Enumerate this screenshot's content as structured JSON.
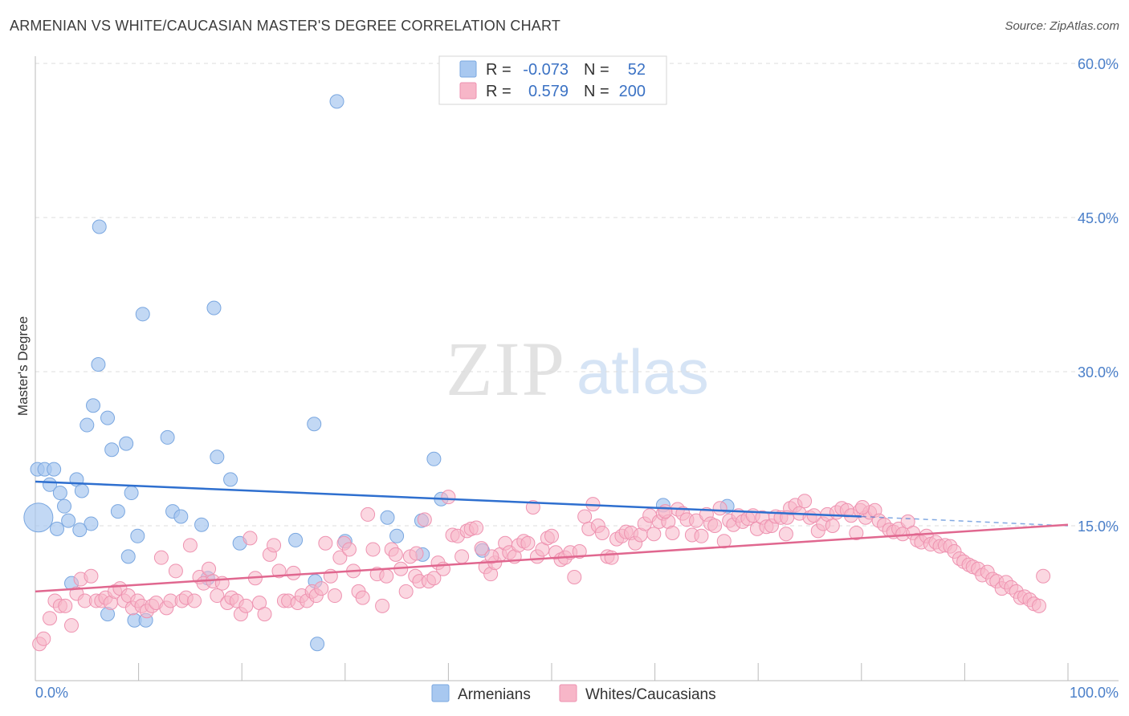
{
  "title": "ARMENIAN VS WHITE/CAUCASIAN MASTER'S DEGREE CORRELATION CHART",
  "source": "Source: ZipAtlas.com",
  "watermark": {
    "zip": "ZIP",
    "atlas": "atlas"
  },
  "legend_top": {
    "r_label": "R =",
    "n_label": "N =",
    "rows": [
      {
        "r": "-0.073",
        "n": "52",
        "color": "#a8c8f0"
      },
      {
        "r": "0.579",
        "n": "200",
        "color": "#f7b6c8"
      }
    ]
  },
  "bottom_legend": [
    "Armenians",
    "Whites/Caucasians"
  ],
  "colors": {
    "blue_fill": "#a8c8f0",
    "blue_line": "#2e6fcf",
    "pink_fill": "#f7b6c8",
    "pink_line": "#e0678f",
    "tick_text": "#4a7fc9"
  },
  "chart_data": {
    "type": "scatter",
    "ylabel": "Master's Degree",
    "xlim": [
      0,
      100
    ],
    "ylim": [
      0,
      60
    ],
    "x_tick_labels": [
      "0.0%",
      "100.0%"
    ],
    "y_ticks": [
      15,
      30,
      45,
      60
    ],
    "y_tick_labels": [
      "15.0%",
      "30.0%",
      "45.0%",
      "60.0%"
    ],
    "grid": "horizontal dashed",
    "legend": "top-center",
    "series": [
      {
        "name": "Armenians",
        "trend": {
          "x": [
            0,
            80,
            100
          ],
          "y": [
            19.3,
            15.9,
            15.0
          ],
          "dashed_after": 80
        },
        "points": [
          [
            0.2,
            20.5
          ],
          [
            0.9,
            20.5
          ],
          [
            1.8,
            20.5
          ],
          [
            1.4,
            19.0
          ],
          [
            2.4,
            18.2
          ],
          [
            2.8,
            16.9
          ],
          [
            3.2,
            15.5
          ],
          [
            2.1,
            14.7
          ],
          [
            4.0,
            19.5
          ],
          [
            4.5,
            18.4
          ],
          [
            5.4,
            15.2
          ],
          [
            4.3,
            14.6
          ],
          [
            3.5,
            9.4
          ],
          [
            5.0,
            24.8
          ],
          [
            5.6,
            26.7
          ],
          [
            6.1,
            30.7
          ],
          [
            6.2,
            44.1
          ],
          [
            7.0,
            25.5
          ],
          [
            7.4,
            22.4
          ],
          [
            8.0,
            16.4
          ],
          [
            8.8,
            23.0
          ],
          [
            9.3,
            18.2
          ],
          [
            9.0,
            12.0
          ],
          [
            9.9,
            14.0
          ],
          [
            10.4,
            35.6
          ],
          [
            12.8,
            23.6
          ],
          [
            13.3,
            16.4
          ],
          [
            14.1,
            15.9
          ],
          [
            16.1,
            15.1
          ],
          [
            16.7,
            9.9
          ],
          [
            17.3,
            36.2
          ],
          [
            17.6,
            21.7
          ],
          [
            18.9,
            19.5
          ],
          [
            19.8,
            13.3
          ],
          [
            7.0,
            6.4
          ],
          [
            9.6,
            5.8
          ],
          [
            10.7,
            5.8
          ],
          [
            25.2,
            13.6
          ],
          [
            27.0,
            24.9
          ],
          [
            27.1,
            9.6
          ],
          [
            27.3,
            3.5
          ],
          [
            29.2,
            56.3
          ],
          [
            30.0,
            13.5
          ],
          [
            34.1,
            15.8
          ],
          [
            35.0,
            14.0
          ],
          [
            37.4,
            15.5
          ],
          [
            37.5,
            12.2
          ],
          [
            38.6,
            21.5
          ],
          [
            39.3,
            17.6
          ],
          [
            43.3,
            12.6
          ],
          [
            60.8,
            17.0
          ],
          [
            67.0,
            16.9
          ],
          [
            0.3,
            15.8
          ]
        ]
      },
      {
        "name": "Whites/Caucasians",
        "trend": {
          "x": [
            0,
            100
          ],
          "y": [
            8.6,
            15.1
          ]
        },
        "points": [
          [
            0.4,
            3.5
          ],
          [
            0.8,
            4.0
          ],
          [
            1.4,
            6.0
          ],
          [
            1.9,
            7.7
          ],
          [
            2.4,
            7.2
          ],
          [
            2.9,
            7.2
          ],
          [
            3.5,
            5.3
          ],
          [
            4.0,
            8.4
          ],
          [
            4.4,
            9.8
          ],
          [
            4.8,
            7.7
          ],
          [
            5.4,
            10.1
          ],
          [
            5.9,
            7.7
          ],
          [
            6.4,
            7.7
          ],
          [
            6.8,
            8.0
          ],
          [
            7.3,
            7.5
          ],
          [
            7.7,
            8.6
          ],
          [
            8.2,
            8.9
          ],
          [
            8.6,
            7.7
          ],
          [
            9.0,
            8.2
          ],
          [
            9.4,
            7.0
          ],
          [
            9.9,
            7.7
          ],
          [
            10.3,
            7.2
          ],
          [
            10.8,
            6.7
          ],
          [
            11.3,
            7.2
          ],
          [
            11.7,
            7.5
          ],
          [
            12.2,
            11.9
          ],
          [
            12.7,
            7.0
          ],
          [
            13.1,
            7.7
          ],
          [
            13.6,
            10.6
          ],
          [
            14.2,
            7.7
          ],
          [
            14.6,
            8.0
          ],
          [
            15.0,
            13.1
          ],
          [
            15.4,
            7.7
          ],
          [
            15.9,
            10.0
          ],
          [
            16.3,
            9.4
          ],
          [
            16.8,
            10.8
          ],
          [
            17.2,
            9.6
          ],
          [
            17.6,
            8.2
          ],
          [
            18.1,
            9.4
          ],
          [
            18.6,
            7.5
          ],
          [
            19.0,
            8.0
          ],
          [
            19.5,
            7.7
          ],
          [
            19.9,
            6.4
          ],
          [
            20.4,
            7.2
          ],
          [
            20.8,
            13.8
          ],
          [
            21.3,
            9.9
          ],
          [
            21.7,
            7.5
          ],
          [
            22.2,
            6.4
          ],
          [
            22.7,
            12.2
          ],
          [
            23.1,
            13.1
          ],
          [
            23.6,
            10.6
          ],
          [
            24.1,
            7.7
          ],
          [
            24.5,
            7.7
          ],
          [
            25.0,
            10.4
          ],
          [
            25.4,
            7.5
          ],
          [
            25.8,
            8.2
          ],
          [
            26.3,
            7.7
          ],
          [
            26.8,
            8.6
          ],
          [
            27.2,
            8.2
          ],
          [
            27.7,
            8.9
          ],
          [
            28.1,
            13.3
          ],
          [
            28.6,
            10.1
          ],
          [
            29.0,
            8.2
          ],
          [
            29.5,
            11.9
          ],
          [
            29.9,
            13.3
          ],
          [
            30.4,
            12.7
          ],
          [
            30.8,
            10.6
          ],
          [
            31.3,
            8.6
          ],
          [
            31.7,
            8.0
          ],
          [
            32.2,
            16.1
          ],
          [
            32.7,
            12.7
          ],
          [
            33.1,
            10.3
          ],
          [
            33.6,
            7.2
          ],
          [
            34.0,
            10.1
          ],
          [
            34.5,
            12.7
          ],
          [
            34.9,
            12.2
          ],
          [
            35.4,
            10.8
          ],
          [
            35.9,
            8.6
          ],
          [
            36.3,
            12.0
          ],
          [
            36.8,
            10.1
          ],
          [
            37.2,
            9.6
          ],
          [
            37.7,
            15.6
          ],
          [
            38.1,
            9.6
          ],
          [
            38.6,
            9.9
          ],
          [
            39.0,
            11.4
          ],
          [
            39.5,
            10.8
          ],
          [
            40.0,
            17.8
          ],
          [
            40.4,
            14.1
          ],
          [
            40.9,
            14.0
          ],
          [
            41.3,
            12.0
          ],
          [
            41.8,
            14.5
          ],
          [
            42.2,
            14.7
          ],
          [
            42.7,
            14.8
          ],
          [
            43.2,
            12.8
          ],
          [
            43.6,
            11.0
          ],
          [
            44.1,
            10.3
          ],
          [
            44.5,
            11.4
          ],
          [
            45.0,
            12.2
          ],
          [
            45.5,
            13.3
          ],
          [
            45.9,
            12.4
          ],
          [
            46.4,
            12.0
          ],
          [
            46.8,
            13.1
          ],
          [
            47.3,
            13.5
          ],
          [
            47.7,
            13.3
          ],
          [
            48.2,
            16.8
          ],
          [
            48.6,
            12.0
          ],
          [
            49.1,
            12.7
          ],
          [
            49.6,
            13.8
          ],
          [
            50.0,
            14.0
          ],
          [
            50.4,
            12.4
          ],
          [
            50.9,
            11.7
          ],
          [
            51.3,
            11.9
          ],
          [
            51.8,
            12.4
          ],
          [
            52.2,
            10.0
          ],
          [
            52.7,
            12.5
          ],
          [
            53.2,
            15.9
          ],
          [
            53.6,
            14.7
          ],
          [
            54.0,
            17.1
          ],
          [
            54.5,
            15.0
          ],
          [
            54.9,
            14.3
          ],
          [
            55.4,
            12.0
          ],
          [
            55.8,
            11.9
          ],
          [
            56.3,
            13.7
          ],
          [
            56.8,
            14.0
          ],
          [
            57.2,
            14.4
          ],
          [
            57.7,
            14.3
          ],
          [
            58.1,
            13.3
          ],
          [
            58.6,
            14.1
          ],
          [
            59.0,
            15.2
          ],
          [
            59.5,
            16.0
          ],
          [
            59.9,
            14.2
          ],
          [
            60.4,
            15.4
          ],
          [
            60.8,
            16.2
          ],
          [
            61.3,
            15.4
          ],
          [
            61.7,
            14.3
          ],
          [
            62.2,
            16.6
          ],
          [
            62.7,
            16.2
          ],
          [
            63.1,
            15.6
          ],
          [
            63.6,
            14.1
          ],
          [
            64.0,
            15.5
          ],
          [
            64.5,
            14.0
          ],
          [
            65.0,
            16.1
          ],
          [
            65.4,
            15.2
          ],
          [
            65.8,
            15.0
          ],
          [
            66.3,
            16.7
          ],
          [
            66.7,
            13.5
          ],
          [
            67.2,
            15.5
          ],
          [
            67.6,
            15.1
          ],
          [
            68.1,
            16.0
          ],
          [
            68.5,
            15.4
          ],
          [
            69.0,
            15.7
          ],
          [
            69.5,
            16.0
          ],
          [
            69.9,
            14.7
          ],
          [
            70.4,
            15.8
          ],
          [
            70.8,
            14.9
          ],
          [
            71.3,
            15.0
          ],
          [
            71.7,
            15.9
          ],
          [
            72.2,
            15.8
          ],
          [
            72.7,
            14.2
          ],
          [
            73.1,
            16.7
          ],
          [
            73.6,
            17.0
          ],
          [
            74.0,
            16.2
          ],
          [
            74.5,
            17.4
          ],
          [
            75.0,
            15.8
          ],
          [
            75.4,
            16.0
          ],
          [
            75.8,
            14.5
          ],
          [
            76.3,
            15.2
          ],
          [
            76.7,
            16.1
          ],
          [
            77.2,
            15.0
          ],
          [
            77.6,
            16.3
          ],
          [
            78.1,
            16.7
          ],
          [
            78.6,
            16.5
          ],
          [
            79.0,
            16.0
          ],
          [
            79.5,
            14.3
          ],
          [
            79.9,
            16.5
          ],
          [
            80.4,
            15.8
          ],
          [
            80.8,
            16.3
          ],
          [
            81.3,
            16.5
          ],
          [
            81.7,
            15.5
          ],
          [
            82.2,
            15.1
          ],
          [
            82.7,
            14.6
          ],
          [
            83.1,
            14.4
          ],
          [
            83.6,
            14.7
          ],
          [
            84.0,
            14.2
          ],
          [
            84.5,
            15.4
          ],
          [
            85.0,
            14.3
          ],
          [
            85.4,
            13.6
          ],
          [
            85.8,
            13.4
          ],
          [
            86.3,
            14.0
          ],
          [
            86.7,
            13.2
          ],
          [
            87.2,
            13.4
          ],
          [
            87.6,
            13.0
          ],
          [
            88.1,
            13.1
          ],
          [
            88.6,
            13.0
          ],
          [
            89.0,
            12.5
          ],
          [
            89.5,
            11.8
          ],
          [
            89.9,
            11.5
          ],
          [
            90.4,
            11.2
          ],
          [
            90.8,
            11.0
          ],
          [
            91.3,
            10.8
          ],
          [
            91.7,
            10.2
          ],
          [
            92.2,
            10.5
          ],
          [
            92.7,
            9.8
          ],
          [
            93.1,
            9.6
          ],
          [
            93.6,
            8.9
          ],
          [
            94.0,
            9.5
          ],
          [
            94.5,
            9.0
          ],
          [
            95.0,
            8.6
          ],
          [
            95.4,
            8.0
          ],
          [
            95.8,
            8.1
          ],
          [
            96.3,
            7.8
          ],
          [
            96.7,
            7.4
          ],
          [
            97.2,
            7.2
          ],
          [
            97.6,
            10.1
          ],
          [
            36.9,
            12.3
          ],
          [
            44.2,
            12.0
          ],
          [
            61.0,
            16.4
          ],
          [
            72.8,
            15.8
          ],
          [
            80.1,
            16.8
          ]
        ]
      }
    ]
  }
}
